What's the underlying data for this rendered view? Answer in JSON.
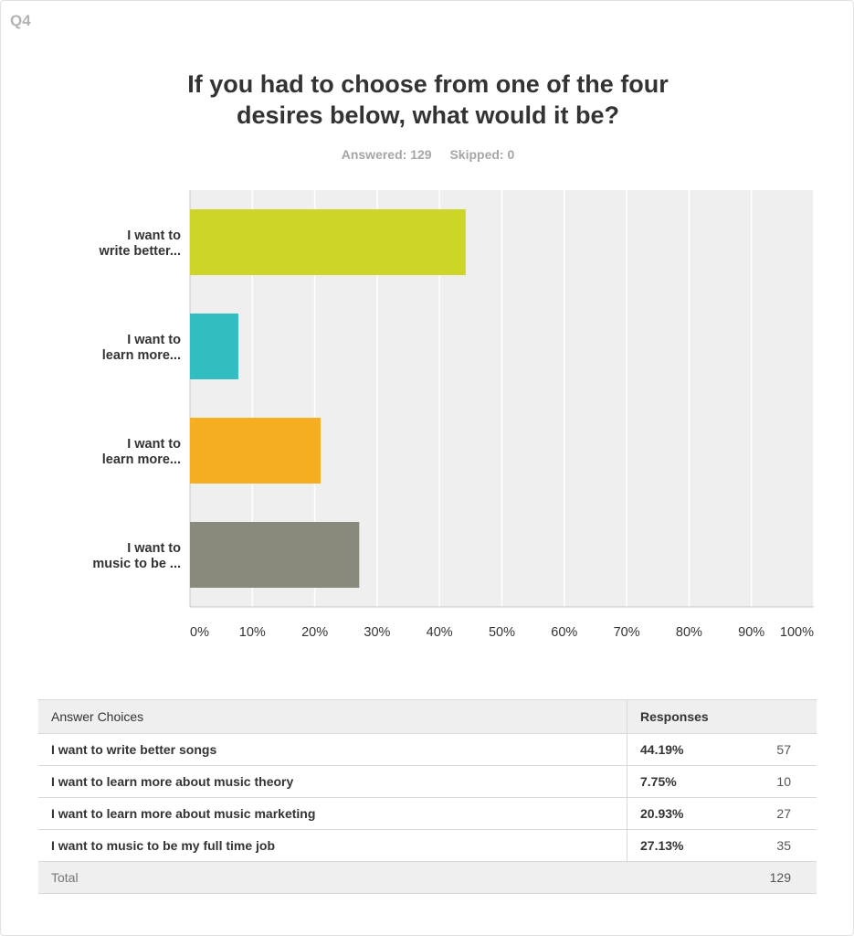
{
  "question": {
    "number": "Q4",
    "title_line1": "If you had to choose from one of the four",
    "title_line2": "desires below, what would it be?",
    "answered": "Answered: 129",
    "skipped": "Skipped: 0"
  },
  "chart_data": {
    "type": "bar",
    "orientation": "horizontal",
    "categories": [
      [
        "I want to",
        "write better..."
      ],
      [
        "I want to",
        "learn more..."
      ],
      [
        "I want to",
        "learn more..."
      ],
      [
        "I want to",
        "music to be ..."
      ]
    ],
    "values": [
      44.19,
      7.75,
      20.93,
      27.13
    ],
    "colors": [
      "#cdd527",
      "#32bec1",
      "#f5ae1f",
      "#898a7b"
    ],
    "xlim": [
      0,
      100
    ],
    "ticks": [
      "0%",
      "10%",
      "20%",
      "30%",
      "40%",
      "50%",
      "60%",
      "70%",
      "80%",
      "90%",
      "100%"
    ],
    "grid": true,
    "background": "#efefef"
  },
  "table": {
    "headers": {
      "choice": "Answer Choices",
      "responses": "Responses"
    },
    "rows": [
      {
        "choice": "I want to write better songs",
        "pct": "44.19%",
        "count": "57"
      },
      {
        "choice": "I want to learn more about music theory",
        "pct": "7.75%",
        "count": "10"
      },
      {
        "choice": "I want to learn more about music marketing",
        "pct": "20.93%",
        "count": "27"
      },
      {
        "choice": "I want to music to be my full time job",
        "pct": "27.13%",
        "count": "35"
      }
    ],
    "total_label": "Total",
    "total_count": "129"
  }
}
